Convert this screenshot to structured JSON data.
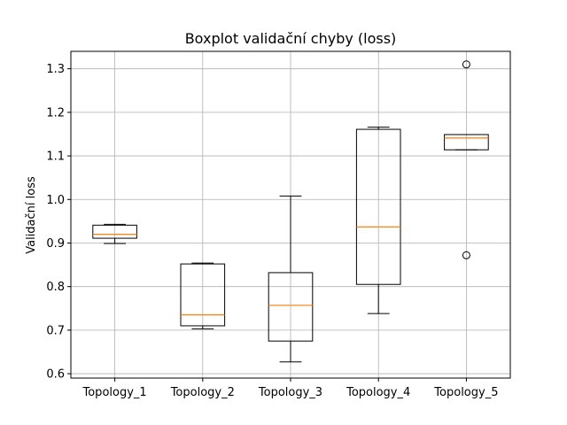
{
  "chart_data": {
    "type": "boxplot",
    "title": "Boxplot validační chyby (loss)",
    "xlabel": "",
    "ylabel": "Validační loss",
    "ylim": [
      0.59,
      1.34
    ],
    "yticks": [
      0.6,
      0.7,
      0.8,
      0.9,
      1.0,
      1.1,
      1.2,
      1.3
    ],
    "ytick_labels": [
      "0.6",
      "0.7",
      "0.8",
      "0.9",
      "1.0",
      "1.1",
      "1.2",
      "1.3"
    ],
    "grid": true,
    "categories": [
      "Topology_1",
      "Topology_2",
      "Topology_3",
      "Topology_4",
      "Topology_5"
    ],
    "boxes": [
      {
        "whisker_low": 0.899,
        "q1": 0.911,
        "median": 0.92,
        "q3": 0.941,
        "whisker_high": 0.943,
        "outliers": []
      },
      {
        "whisker_low": 0.703,
        "q1": 0.71,
        "median": 0.735,
        "q3": 0.852,
        "whisker_high": 0.854,
        "outliers": []
      },
      {
        "whisker_low": 0.627,
        "q1": 0.675,
        "median": 0.757,
        "q3": 0.832,
        "whisker_high": 1.008,
        "outliers": []
      },
      {
        "whisker_low": 0.738,
        "q1": 0.805,
        "median": 0.937,
        "q3": 1.161,
        "whisker_high": 1.166,
        "outliers": []
      },
      {
        "whisker_low": 1.114,
        "q1": 1.114,
        "median": 1.141,
        "q3": 1.149,
        "whisker_high": 1.149,
        "outliers": [
          0.872,
          1.31
        ]
      }
    ],
    "colors": {
      "box": "#000000",
      "median": "#ff7f0e",
      "grid": "#b0b0b0"
    }
  }
}
